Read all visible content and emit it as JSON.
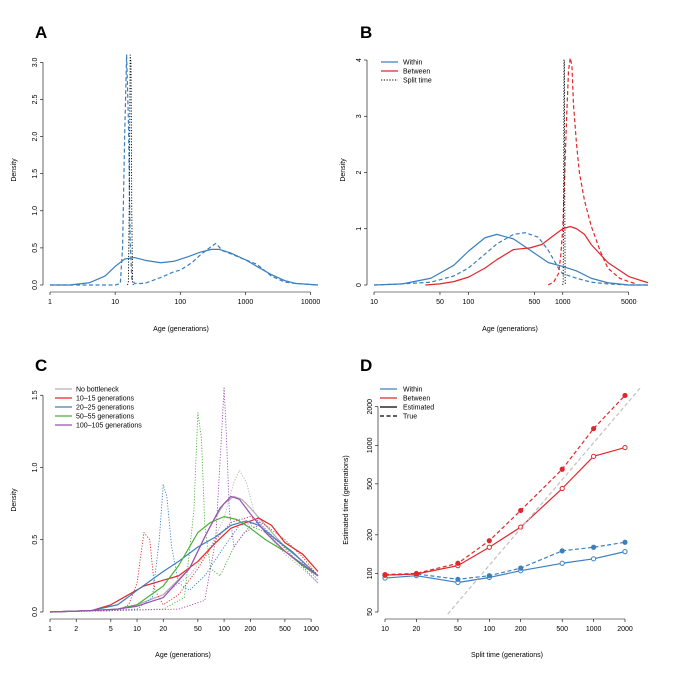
{
  "chart_data": [
    {
      "panel": "A",
      "type": "line",
      "xscale": "log",
      "xlabel": "Age (generations)",
      "ylabel": "Density",
      "xlim": [
        1,
        13000
      ],
      "ylim": [
        0,
        3.1
      ],
      "xticks": [
        1,
        10,
        100,
        1000,
        10000
      ],
      "xtick_labels": [
        "1",
        "10",
        "100",
        "1000",
        "10000"
      ],
      "yticks": [
        0,
        0.5,
        1,
        1.5,
        2,
        2.5,
        3
      ],
      "ytick_labels": [
        "0.0",
        "0.5",
        "1.0",
        "1.5",
        "2.0",
        "2.5",
        "3.0"
      ],
      "series": [
        {
          "name": "Within estimated",
          "color": "#3a7fc0",
          "dash": "solid",
          "x": [
            1,
            2,
            4,
            7,
            10,
            14,
            20,
            30,
            50,
            80,
            130,
            200,
            300,
            400,
            600,
            1000,
            1500,
            2500,
            4000,
            6000,
            9000,
            13000
          ],
          "y": [
            0,
            0,
            0.03,
            0.12,
            0.25,
            0.35,
            0.37,
            0.33,
            0.3,
            0.32,
            0.38,
            0.44,
            0.48,
            0.48,
            0.43,
            0.34,
            0.25,
            0.14,
            0.06,
            0.02,
            0.01,
            0
          ]
        },
        {
          "name": "Within true",
          "color": "#3a7fc0",
          "dash": "dashed",
          "x": [
            1,
            10,
            12,
            13,
            14,
            15,
            16,
            17,
            18,
            20,
            25,
            30,
            50,
            80,
            100,
            150,
            200,
            300,
            350,
            450,
            600,
            1000,
            1500,
            2500,
            4000,
            6000,
            9000,
            13000
          ],
          "y": [
            0,
            0,
            0.02,
            0.5,
            2.0,
            3.1,
            2.2,
            0.6,
            0.08,
            0.02,
            0.02,
            0.03,
            0.1,
            0.18,
            0.2,
            0.3,
            0.4,
            0.52,
            0.56,
            0.46,
            0.42,
            0.34,
            0.28,
            0.12,
            0.04,
            0.02,
            0.01,
            0
          ]
        },
        {
          "name": "Split time",
          "color": "#000000",
          "dash": "dotted",
          "x": [
            15.5,
            16,
            16.5,
            17,
            17.5,
            18,
            18.5,
            19
          ],
          "y": [
            0,
            0.05,
            1.2,
            3.1,
            3.0,
            1.0,
            0.05,
            0
          ]
        }
      ]
    },
    {
      "panel": "B",
      "type": "line",
      "xscale": "log",
      "xlabel": "Age (generations)",
      "ylabel": "Density",
      "xlim": [
        10,
        8000
      ],
      "ylim": [
        0,
        4.0
      ],
      "xticks": [
        10,
        50,
        100,
        500,
        1000,
        5000
      ],
      "xtick_labels": [
        "10",
        "50",
        "100",
        "500",
        "1000",
        "5000"
      ],
      "yticks": [
        0,
        1,
        2,
        3,
        4
      ],
      "ytick_labels": [
        "0",
        "1",
        "2",
        "3",
        "4"
      ],
      "legend": [
        {
          "label": "Within",
          "color": "#3a7fc0",
          "dash": "solid"
        },
        {
          "label": "Between",
          "color": "#e0282c",
          "dash": "solid"
        },
        {
          "label": "Split time",
          "color": "#000000",
          "dash": "dotted"
        }
      ],
      "series": [
        {
          "name": "Within estimated",
          "color": "#3a7fc0",
          "dash": "solid",
          "x": [
            10,
            20,
            40,
            70,
            100,
            150,
            200,
            300,
            450,
            700,
            1000,
            1400,
            2000,
            3000,
            5000,
            8000
          ],
          "y": [
            0,
            0.02,
            0.12,
            0.35,
            0.6,
            0.84,
            0.9,
            0.82,
            0.62,
            0.4,
            0.33,
            0.25,
            0.12,
            0.04,
            0,
            0
          ]
        },
        {
          "name": "Within true",
          "color": "#3a7fc0",
          "dash": "dashed",
          "x": [
            10,
            20,
            40,
            70,
            100,
            150,
            200,
            300,
            400,
            550,
            700,
            900,
            1000,
            1400,
            2000,
            3000,
            5000,
            8000
          ],
          "y": [
            0,
            0.02,
            0.05,
            0.16,
            0.3,
            0.55,
            0.73,
            0.9,
            0.93,
            0.85,
            0.62,
            0.3,
            0.2,
            0.12,
            0.05,
            0.02,
            0,
            0
          ]
        },
        {
          "name": "Between estimated",
          "color": "#e0282c",
          "dash": "solid",
          "x": [
            35,
            50,
            70,
            100,
            150,
            200,
            300,
            450,
            600,
            800,
            1000,
            1200,
            1400,
            1700,
            2000,
            3000,
            5000,
            8000
          ],
          "y": [
            0,
            0.02,
            0.06,
            0.14,
            0.3,
            0.45,
            0.63,
            0.66,
            0.72,
            0.88,
            1.0,
            1.04,
            1.0,
            0.9,
            0.72,
            0.4,
            0.15,
            0.04
          ]
        },
        {
          "name": "Between true",
          "color": "#e0282c",
          "dash": "dashed",
          "x": [
            700,
            800,
            900,
            950,
            1000,
            1050,
            1100,
            1150,
            1200,
            1250,
            1300,
            1400,
            1500,
            1700,
            2000,
            2500,
            3000,
            4000,
            5000,
            6000
          ],
          "y": [
            0,
            0.05,
            0.2,
            0.5,
            1.0,
            2.0,
            3.0,
            3.8,
            4.1,
            3.9,
            3.2,
            2.5,
            2.0,
            1.5,
            1.05,
            0.6,
            0.3,
            0.12,
            0.06,
            0.02
          ]
        },
        {
          "name": "Split time",
          "color": "#000000",
          "dash": "dotted",
          "x": [
            1000,
            1010,
            1020,
            1030,
            1040,
            1050,
            1060,
            1070
          ],
          "y": [
            0,
            0.05,
            1.5,
            4.0,
            4.0,
            1.5,
            0.05,
            0
          ]
        }
      ]
    },
    {
      "panel": "C",
      "type": "line",
      "xscale": "log",
      "xlabel": "Age (generations)",
      "ylabel": "Density",
      "xlim": [
        1,
        1200
      ],
      "ylim": [
        0,
        1.55
      ],
      "xticks": [
        1,
        2,
        5,
        10,
        20,
        50,
        100,
        200,
        500,
        1000
      ],
      "xtick_labels": [
        "1",
        "2",
        "5",
        "10",
        "20",
        "50",
        "100",
        "200",
        "500",
        "1000"
      ],
      "yticks": [
        0,
        0.5,
        1,
        1.5
      ],
      "ytick_labels": [
        "0.0",
        "0.5",
        "1.0",
        "1.5"
      ],
      "legend": [
        {
          "label": "No bottleneck",
          "color": "#b0b0b0"
        },
        {
          "label": "10–15 generations",
          "color": "#e0282c"
        },
        {
          "label": "20–25 generations",
          "color": "#3a7fc0"
        },
        {
          "label": "50–55 generations",
          "color": "#4caf3c"
        },
        {
          "label": "100–105 generations",
          "color": "#9b4fb5"
        }
      ],
      "series": [
        {
          "name": "No bottleneck estimated",
          "color": "#b0b0b0",
          "dash": "solid",
          "x": [
            1,
            3,
            6,
            10,
            20,
            40,
            70,
            100,
            130,
            160,
            200,
            300,
            500,
            800,
            1200
          ],
          "y": [
            0,
            0.01,
            0.02,
            0.05,
            0.12,
            0.3,
            0.6,
            0.75,
            0.8,
            0.78,
            0.72,
            0.6,
            0.45,
            0.35,
            0.25
          ]
        },
        {
          "name": "No bottleneck true",
          "color": "#b0b0b0",
          "dash": "dotted",
          "x": [
            1,
            3,
            6,
            10,
            20,
            40,
            70,
            100,
            130,
            150,
            180,
            220,
            300,
            500,
            800,
            1200
          ],
          "y": [
            0,
            0.01,
            0.02,
            0.05,
            0.12,
            0.25,
            0.45,
            0.65,
            0.9,
            0.98,
            0.9,
            0.7,
            0.55,
            0.4,
            0.3,
            0.2
          ]
        },
        {
          "name": "10–15 estimated",
          "color": "#e0282c",
          "dash": "solid",
          "x": [
            1,
            3,
            5,
            8,
            12,
            20,
            30,
            50,
            80,
            120,
            180,
            250,
            350,
            500,
            800,
            1200
          ],
          "y": [
            0,
            0.01,
            0.05,
            0.12,
            0.18,
            0.22,
            0.25,
            0.35,
            0.48,
            0.58,
            0.62,
            0.65,
            0.6,
            0.48,
            0.4,
            0.28
          ]
        },
        {
          "name": "10–15 true",
          "color": "#e0282c",
          "dash": "dotted",
          "x": [
            1,
            6,
            8,
            10,
            12,
            14,
            16,
            20,
            30,
            50,
            80,
            120,
            200,
            300,
            500,
            800,
            1200
          ],
          "y": [
            0,
            0.01,
            0.05,
            0.2,
            0.55,
            0.5,
            0.15,
            0.05,
            0.12,
            0.3,
            0.5,
            0.62,
            0.66,
            0.6,
            0.5,
            0.38,
            0.25
          ]
        },
        {
          "name": "20–25 estimated",
          "color": "#3a7fc0",
          "dash": "solid",
          "x": [
            1,
            3,
            6,
            10,
            20,
            30,
            50,
            80,
            120,
            180,
            250,
            400,
            600,
            900,
            1200
          ],
          "y": [
            0,
            0.01,
            0.05,
            0.15,
            0.28,
            0.35,
            0.45,
            0.52,
            0.6,
            0.63,
            0.6,
            0.5,
            0.42,
            0.32,
            0.25
          ]
        },
        {
          "name": "20–25 true",
          "color": "#3a7fc0",
          "dash": "dotted",
          "x": [
            1,
            10,
            15,
            18,
            20,
            22,
            25,
            30,
            40,
            60,
            100,
            150,
            250,
            400,
            700,
            1200
          ],
          "y": [
            0,
            0.02,
            0.1,
            0.5,
            0.88,
            0.8,
            0.45,
            0.2,
            0.15,
            0.25,
            0.45,
            0.6,
            0.62,
            0.5,
            0.38,
            0.22
          ]
        },
        {
          "name": "50–55 estimated",
          "color": "#4caf3c",
          "dash": "solid",
          "x": [
            1,
            3,
            6,
            10,
            20,
            30,
            50,
            70,
            100,
            140,
            200,
            300,
            500,
            800,
            1200
          ],
          "y": [
            0,
            0.01,
            0.02,
            0.05,
            0.18,
            0.32,
            0.55,
            0.62,
            0.66,
            0.64,
            0.58,
            0.5,
            0.42,
            0.32,
            0.25
          ]
        },
        {
          "name": "50–55 true",
          "color": "#4caf3c",
          "dash": "dotted",
          "x": [
            1,
            20,
            35,
            45,
            50,
            55,
            60,
            70,
            90,
            130,
            200,
            300,
            500,
            800,
            1200
          ],
          "y": [
            0,
            0.02,
            0.1,
            0.7,
            1.38,
            1.2,
            0.6,
            0.3,
            0.25,
            0.45,
            0.6,
            0.55,
            0.45,
            0.35,
            0.25
          ]
        },
        {
          "name": "100–105 estimated",
          "color": "#9b4fb5",
          "dash": "solid",
          "x": [
            1,
            3,
            6,
            10,
            20,
            40,
            60,
            90,
            120,
            150,
            200,
            300,
            500,
            800,
            1200
          ],
          "y": [
            0,
            0.01,
            0.02,
            0.04,
            0.1,
            0.3,
            0.52,
            0.72,
            0.8,
            0.78,
            0.68,
            0.55,
            0.42,
            0.33,
            0.25
          ]
        },
        {
          "name": "100–105 true",
          "color": "#9b4fb5",
          "dash": "dotted",
          "x": [
            1,
            30,
            60,
            80,
            95,
            100,
            105,
            115,
            130,
            170,
            250,
            400,
            700,
            1200
          ],
          "y": [
            0,
            0.02,
            0.08,
            0.5,
            1.3,
            1.55,
            1.3,
            0.7,
            0.45,
            0.55,
            0.6,
            0.5,
            0.35,
            0.2
          ]
        }
      ]
    },
    {
      "panel": "D",
      "type": "line",
      "xscale": "log",
      "yscale": "log",
      "xlabel": "Split time (generations)",
      "ylabel": "Estimated time (generations)",
      "xlim": [
        10,
        2000
      ],
      "ylim": [
        50,
        2800
      ],
      "xticks": [
        10,
        20,
        50,
        100,
        200,
        500,
        1000,
        2000
      ],
      "xtick_labels": [
        "10",
        "20",
        "50",
        "100",
        "200",
        "500",
        "1000",
        "2000"
      ],
      "yticks": [
        50,
        100,
        200,
        500,
        1000,
        2000
      ],
      "ytick_labels": [
        "50",
        "100",
        "200",
        "500",
        "1000",
        "2000"
      ],
      "legend": [
        {
          "label": "Within",
          "color": "#3a7fc0",
          "dash": "solid"
        },
        {
          "label": "Between",
          "color": "#e0282c",
          "dash": "solid"
        },
        {
          "label": "Estimated",
          "color": "#000000",
          "dash": "solid"
        },
        {
          "label": "True",
          "color": "#000000",
          "dash": "dashed"
        }
      ],
      "series": [
        {
          "name": "Within estimated",
          "color": "#3a7fc0",
          "dash": "solid",
          "marker": "open",
          "x": [
            10,
            20,
            50,
            100,
            200,
            500,
            1000,
            2000
          ],
          "y": [
            92,
            96,
            85,
            93,
            105,
            120,
            130,
            148
          ]
        },
        {
          "name": "Within true",
          "color": "#3a7fc0",
          "dash": "dashed",
          "marker": "filled",
          "x": [
            10,
            20,
            50,
            100,
            200,
            500,
            1000,
            2000
          ],
          "y": [
            97,
            99,
            90,
            96,
            110,
            150,
            160,
            175
          ]
        },
        {
          "name": "Between estimated",
          "color": "#e0282c",
          "dash": "solid",
          "marker": "open",
          "x": [
            10,
            20,
            50,
            100,
            200,
            500,
            1000,
            2000
          ],
          "y": [
            97,
            99,
            115,
            160,
            230,
            460,
            820,
            960
          ]
        },
        {
          "name": "Between true",
          "color": "#e0282c",
          "dash": "dashed",
          "marker": "filled",
          "x": [
            10,
            20,
            50,
            100,
            200,
            500,
            1000,
            2000
          ],
          "y": [
            98,
            100,
            120,
            180,
            310,
            650,
            1350,
            2450
          ]
        },
        {
          "name": "Identity",
          "color": "#c0c0c0",
          "dash": "dashed",
          "marker": "none",
          "x": [
            40,
            2800
          ],
          "y": [
            40,
            2800
          ]
        }
      ]
    }
  ]
}
